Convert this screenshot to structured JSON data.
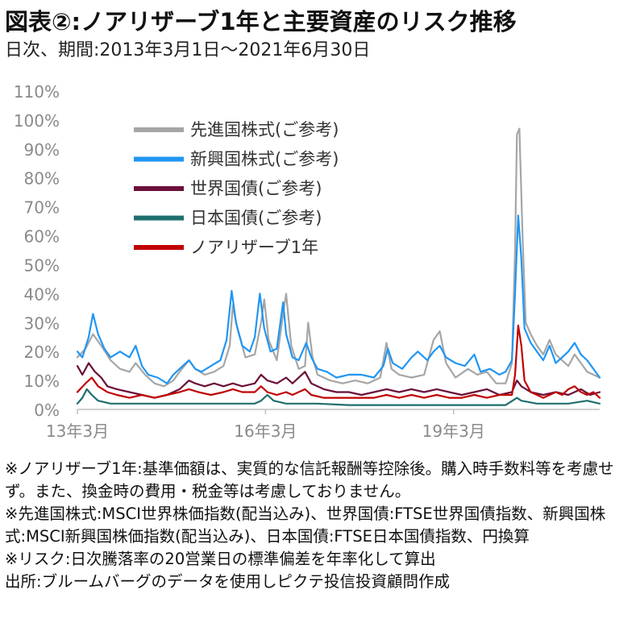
{
  "header": {
    "title": "図表②:ノアリザーブ1年と主要資産のリスク推移",
    "subtitle": "日次、期間:2013年3月1日〜2021年6月30日"
  },
  "notes": [
    "※ノアリザーブ1年:基準価額は、実質的な信託報酬等控除後。購入時手数料等を考慮せず。また、換金時の費用・税金等は考慮しておりません。",
    "※先進国株式:MSCI世界株価指数(配当込み)、世界国債:FTSE世界国債指数、新興国株式:MSCI新興国株価指数(配当込み)、日本国債:FTSE日本国債指数、円換算",
    "※リスク:日次騰落率の20営業日の標準偏差を年率化して算出",
    "出所:ブルームバーグのデータを使用しピクテ投信投資顧問作成"
  ],
  "chart_data": {
    "type": "line",
    "title": "",
    "xlabel": "",
    "ylabel": "",
    "ylim": [
      0,
      110
    ],
    "yticks": [
      "0%",
      "10%",
      "20%",
      "30%",
      "40%",
      "50%",
      "60%",
      "70%",
      "80%",
      "90%",
      "100%",
      "110%"
    ],
    "xticks": [
      {
        "label": "13年3月",
        "x": 2013.17
      },
      {
        "label": "16年3月",
        "x": 2016.17
      },
      {
        "label": "19年3月",
        "x": 2019.17
      }
    ],
    "xlim": [
      2013.17,
      2021.5
    ],
    "grid": false,
    "legend_position": "top-left",
    "series": [
      {
        "name": "先進国株式(ご参考)",
        "color": "#a6a6a6",
        "points": [
          [
            2013.17,
            18
          ],
          [
            2013.3,
            21
          ],
          [
            2013.42,
            26
          ],
          [
            2013.55,
            22
          ],
          [
            2013.7,
            17
          ],
          [
            2013.85,
            14
          ],
          [
            2014.0,
            13
          ],
          [
            2014.1,
            16
          ],
          [
            2014.25,
            12
          ],
          [
            2014.4,
            9
          ],
          [
            2014.55,
            8
          ],
          [
            2014.7,
            10
          ],
          [
            2014.8,
            13
          ],
          [
            2014.95,
            17
          ],
          [
            2015.05,
            14
          ],
          [
            2015.2,
            12
          ],
          [
            2015.35,
            13
          ],
          [
            2015.5,
            15
          ],
          [
            2015.6,
            22
          ],
          [
            2015.65,
            36
          ],
          [
            2015.72,
            28
          ],
          [
            2015.85,
            18
          ],
          [
            2016.0,
            19
          ],
          [
            2016.1,
            30
          ],
          [
            2016.15,
            38
          ],
          [
            2016.22,
            24
          ],
          [
            2016.35,
            17
          ],
          [
            2016.45,
            33
          ],
          [
            2016.5,
            40
          ],
          [
            2016.58,
            22
          ],
          [
            2016.7,
            14
          ],
          [
            2016.8,
            15
          ],
          [
            2016.85,
            30
          ],
          [
            2016.92,
            18
          ],
          [
            2017.0,
            12
          ],
          [
            2017.2,
            10
          ],
          [
            2017.4,
            9
          ],
          [
            2017.6,
            10
          ],
          [
            2017.8,
            9
          ],
          [
            2018.0,
            11
          ],
          [
            2018.1,
            23
          ],
          [
            2018.18,
            14
          ],
          [
            2018.3,
            12
          ],
          [
            2018.5,
            11
          ],
          [
            2018.7,
            12
          ],
          [
            2018.85,
            24
          ],
          [
            2018.95,
            27
          ],
          [
            2019.05,
            16
          ],
          [
            2019.2,
            11
          ],
          [
            2019.4,
            14
          ],
          [
            2019.55,
            12
          ],
          [
            2019.7,
            13
          ],
          [
            2019.85,
            9
          ],
          [
            2020.0,
            9
          ],
          [
            2020.1,
            16
          ],
          [
            2020.15,
            55
          ],
          [
            2020.18,
            95
          ],
          [
            2020.22,
            97
          ],
          [
            2020.27,
            60
          ],
          [
            2020.32,
            30
          ],
          [
            2020.4,
            26
          ],
          [
            2020.5,
            22
          ],
          [
            2020.6,
            19
          ],
          [
            2020.7,
            24
          ],
          [
            2020.8,
            19
          ],
          [
            2020.9,
            17
          ],
          [
            2021.0,
            15
          ],
          [
            2021.1,
            19
          ],
          [
            2021.2,
            16
          ],
          [
            2021.3,
            13
          ],
          [
            2021.4,
            12
          ],
          [
            2021.5,
            11
          ]
        ]
      },
      {
        "name": "新興国株式(ご参考)",
        "color": "#2196f3",
        "points": [
          [
            2013.17,
            20
          ],
          [
            2013.25,
            18
          ],
          [
            2013.35,
            25
          ],
          [
            2013.42,
            33
          ],
          [
            2013.5,
            26
          ],
          [
            2013.6,
            21
          ],
          [
            2013.7,
            18
          ],
          [
            2013.85,
            20
          ],
          [
            2014.0,
            18
          ],
          [
            2014.1,
            22
          ],
          [
            2014.2,
            15
          ],
          [
            2014.3,
            12
          ],
          [
            2014.45,
            11
          ],
          [
            2014.6,
            9
          ],
          [
            2014.7,
            12
          ],
          [
            2014.85,
            15
          ],
          [
            2014.95,
            17
          ],
          [
            2015.05,
            14
          ],
          [
            2015.15,
            13
          ],
          [
            2015.3,
            15
          ],
          [
            2015.45,
            17
          ],
          [
            2015.55,
            24
          ],
          [
            2015.63,
            41
          ],
          [
            2015.7,
            30
          ],
          [
            2015.8,
            22
          ],
          [
            2015.92,
            20
          ],
          [
            2016.0,
            25
          ],
          [
            2016.08,
            40
          ],
          [
            2016.15,
            28
          ],
          [
            2016.25,
            20
          ],
          [
            2016.35,
            21
          ],
          [
            2016.45,
            37
          ],
          [
            2016.5,
            26
          ],
          [
            2016.6,
            18
          ],
          [
            2016.7,
            17
          ],
          [
            2016.82,
            23
          ],
          [
            2016.9,
            18
          ],
          [
            2017.0,
            14
          ],
          [
            2017.15,
            13
          ],
          [
            2017.3,
            11
          ],
          [
            2017.5,
            12
          ],
          [
            2017.7,
            12
          ],
          [
            2017.9,
            11
          ],
          [
            2018.05,
            15
          ],
          [
            2018.12,
            21
          ],
          [
            2018.2,
            16
          ],
          [
            2018.35,
            14
          ],
          [
            2018.5,
            18
          ],
          [
            2018.6,
            20
          ],
          [
            2018.75,
            17
          ],
          [
            2018.85,
            20
          ],
          [
            2018.95,
            22
          ],
          [
            2019.05,
            18
          ],
          [
            2019.2,
            16
          ],
          [
            2019.35,
            15
          ],
          [
            2019.5,
            19
          ],
          [
            2019.6,
            13
          ],
          [
            2019.75,
            14
          ],
          [
            2019.9,
            12
          ],
          [
            2020.0,
            13
          ],
          [
            2020.1,
            17
          ],
          [
            2020.15,
            40
          ],
          [
            2020.2,
            67
          ],
          [
            2020.25,
            52
          ],
          [
            2020.3,
            28
          ],
          [
            2020.4,
            23
          ],
          [
            2020.5,
            20
          ],
          [
            2020.6,
            17
          ],
          [
            2020.7,
            22
          ],
          [
            2020.8,
            16
          ],
          [
            2020.9,
            18
          ],
          [
            2021.0,
            20
          ],
          [
            2021.1,
            23
          ],
          [
            2021.2,
            19
          ],
          [
            2021.3,
            17
          ],
          [
            2021.4,
            14
          ],
          [
            2021.5,
            11
          ]
        ]
      },
      {
        "name": "世界国債(ご参考)",
        "color": "#6b0f3a",
        "points": [
          [
            2013.17,
            15
          ],
          [
            2013.25,
            12
          ],
          [
            2013.35,
            16
          ],
          [
            2013.45,
            13
          ],
          [
            2013.55,
            11
          ],
          [
            2013.65,
            8
          ],
          [
            2013.8,
            7
          ],
          [
            2014.0,
            6
          ],
          [
            2014.2,
            5
          ],
          [
            2014.4,
            4
          ],
          [
            2014.6,
            5
          ],
          [
            2014.8,
            7
          ],
          [
            2014.95,
            10
          ],
          [
            2015.05,
            9
          ],
          [
            2015.2,
            8
          ],
          [
            2015.35,
            9
          ],
          [
            2015.5,
            8
          ],
          [
            2015.65,
            9
          ],
          [
            2015.8,
            8
          ],
          [
            2016.0,
            9
          ],
          [
            2016.1,
            12
          ],
          [
            2016.2,
            10
          ],
          [
            2016.35,
            9
          ],
          [
            2016.5,
            11
          ],
          [
            2016.6,
            9
          ],
          [
            2016.8,
            13
          ],
          [
            2016.9,
            9
          ],
          [
            2017.1,
            7
          ],
          [
            2017.3,
            6
          ],
          [
            2017.5,
            6
          ],
          [
            2017.7,
            5
          ],
          [
            2017.9,
            6
          ],
          [
            2018.1,
            7
          ],
          [
            2018.3,
            6
          ],
          [
            2018.5,
            7
          ],
          [
            2018.7,
            6
          ],
          [
            2018.9,
            7
          ],
          [
            2019.1,
            6
          ],
          [
            2019.3,
            5
          ],
          [
            2019.5,
            6
          ],
          [
            2019.7,
            7
          ],
          [
            2019.9,
            5
          ],
          [
            2020.1,
            6
          ],
          [
            2020.18,
            10
          ],
          [
            2020.25,
            8
          ],
          [
            2020.4,
            6
          ],
          [
            2020.6,
            5
          ],
          [
            2020.8,
            6
          ],
          [
            2021.0,
            5
          ],
          [
            2021.2,
            7
          ],
          [
            2021.35,
            5
          ],
          [
            2021.5,
            6
          ]
        ]
      },
      {
        "name": "日本国債(ご参考)",
        "color": "#1f6e6e",
        "points": [
          [
            2013.17,
            2
          ],
          [
            2013.25,
            4
          ],
          [
            2013.32,
            7
          ],
          [
            2013.4,
            5
          ],
          [
            2013.5,
            3
          ],
          [
            2013.7,
            2
          ],
          [
            2014.0,
            2
          ],
          [
            2014.5,
            2
          ],
          [
            2015.0,
            2
          ],
          [
            2015.3,
            2
          ],
          [
            2015.6,
            2
          ],
          [
            2016.0,
            2
          ],
          [
            2016.1,
            3
          ],
          [
            2016.2,
            5
          ],
          [
            2016.3,
            3
          ],
          [
            2016.5,
            2
          ],
          [
            2016.8,
            2
          ],
          [
            2017.0,
            2
          ],
          [
            2017.5,
            1.5
          ],
          [
            2018.0,
            1.5
          ],
          [
            2018.5,
            1.5
          ],
          [
            2019.0,
            1.5
          ],
          [
            2019.5,
            1.5
          ],
          [
            2020.0,
            1.5
          ],
          [
            2020.18,
            4
          ],
          [
            2020.25,
            3
          ],
          [
            2020.5,
            2
          ],
          [
            2021.0,
            2
          ],
          [
            2021.3,
            3
          ],
          [
            2021.5,
            2
          ]
        ]
      },
      {
        "name": "ノアリザーブ1年",
        "color": "#c00000",
        "points": [
          [
            2013.17,
            6
          ],
          [
            2013.3,
            9
          ],
          [
            2013.4,
            11
          ],
          [
            2013.5,
            8
          ],
          [
            2013.65,
            6
          ],
          [
            2013.8,
            5
          ],
          [
            2014.0,
            4
          ],
          [
            2014.2,
            5
          ],
          [
            2014.4,
            4
          ],
          [
            2014.6,
            5
          ],
          [
            2014.8,
            6
          ],
          [
            2014.95,
            7
          ],
          [
            2015.1,
            6
          ],
          [
            2015.3,
            5
          ],
          [
            2015.5,
            6
          ],
          [
            2015.65,
            7
          ],
          [
            2015.8,
            6
          ],
          [
            2016.0,
            6
          ],
          [
            2016.1,
            8
          ],
          [
            2016.2,
            6
          ],
          [
            2016.35,
            5
          ],
          [
            2016.5,
            6
          ],
          [
            2016.6,
            5
          ],
          [
            2016.8,
            7
          ],
          [
            2016.9,
            5
          ],
          [
            2017.1,
            4
          ],
          [
            2017.3,
            4
          ],
          [
            2017.5,
            4
          ],
          [
            2017.7,
            4
          ],
          [
            2017.9,
            4
          ],
          [
            2018.1,
            5
          ],
          [
            2018.3,
            4
          ],
          [
            2018.5,
            5
          ],
          [
            2018.7,
            4
          ],
          [
            2018.9,
            5
          ],
          [
            2019.1,
            4
          ],
          [
            2019.3,
            4
          ],
          [
            2019.5,
            5
          ],
          [
            2019.7,
            4
          ],
          [
            2019.9,
            5
          ],
          [
            2020.1,
            5
          ],
          [
            2020.15,
            12
          ],
          [
            2020.2,
            29
          ],
          [
            2020.25,
            22
          ],
          [
            2020.3,
            10
          ],
          [
            2020.4,
            6
          ],
          [
            2020.5,
            5
          ],
          [
            2020.6,
            4
          ],
          [
            2020.8,
            6
          ],
          [
            2020.9,
            5
          ],
          [
            2021.0,
            7
          ],
          [
            2021.1,
            8
          ],
          [
            2021.2,
            6
          ],
          [
            2021.3,
            5
          ],
          [
            2021.4,
            6
          ],
          [
            2021.5,
            4
          ]
        ]
      }
    ]
  }
}
